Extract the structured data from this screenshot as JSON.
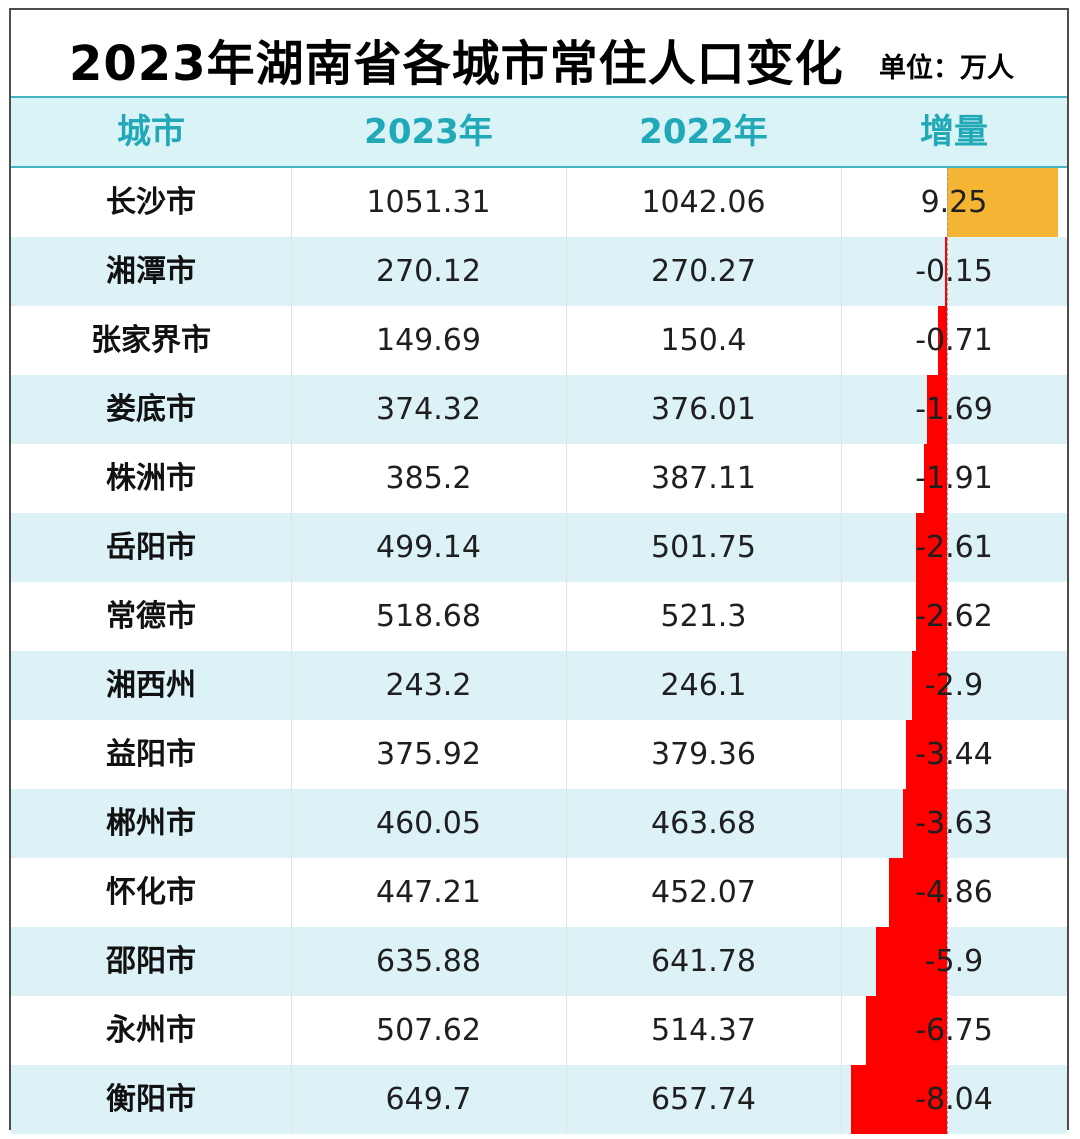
{
  "title": "2023年湖南省各城市常住人口变化",
  "unit": "单位：万人",
  "colors": {
    "header_bg": "#d9f3f7",
    "header_text": "#22a9b8",
    "row_alt_bg": "#dcf2f7",
    "positive_bar": "#f5b534",
    "negative_bar": "#ff0000"
  },
  "chart_data": {
    "type": "table",
    "columns": [
      "城市",
      "2023年",
      "2022年",
      "增量"
    ],
    "rows": [
      [
        "长沙市",
        "1051.31",
        "1042.06",
        "9.25"
      ],
      [
        "湘潭市",
        "270.12",
        "270.27",
        "-0.15"
      ],
      [
        "张家界市",
        "149.69",
        "150.4",
        "-0.71"
      ],
      [
        "娄底市",
        "374.32",
        "376.01",
        "-1.69"
      ],
      [
        "株洲市",
        "385.2",
        "387.11",
        "-1.91"
      ],
      [
        "岳阳市",
        "499.14",
        "501.75",
        "-2.61"
      ],
      [
        "常德市",
        "518.68",
        "521.3",
        "-2.62"
      ],
      [
        "湘西州",
        "243.2",
        "246.1",
        "-2.9"
      ],
      [
        "益阳市",
        "375.92",
        "379.36",
        "-3.44"
      ],
      [
        "郴州市",
        "460.05",
        "463.68",
        "-3.63"
      ],
      [
        "怀化市",
        "447.21",
        "452.07",
        "-4.86"
      ],
      [
        "邵阳市",
        "635.88",
        "641.78",
        "-5.9"
      ],
      [
        "永州市",
        "507.62",
        "514.37",
        "-6.75"
      ],
      [
        "衡阳市",
        "649.7",
        "657.74",
        "-8.04"
      ]
    ],
    "increment_values": [
      9.25,
      -0.15,
      -0.71,
      -1.69,
      -1.91,
      -2.61,
      -2.62,
      -2.9,
      -3.44,
      -3.63,
      -4.86,
      -5.9,
      -6.75,
      -8.04
    ],
    "increment_range": [
      -8.04,
      9.25
    ]
  }
}
